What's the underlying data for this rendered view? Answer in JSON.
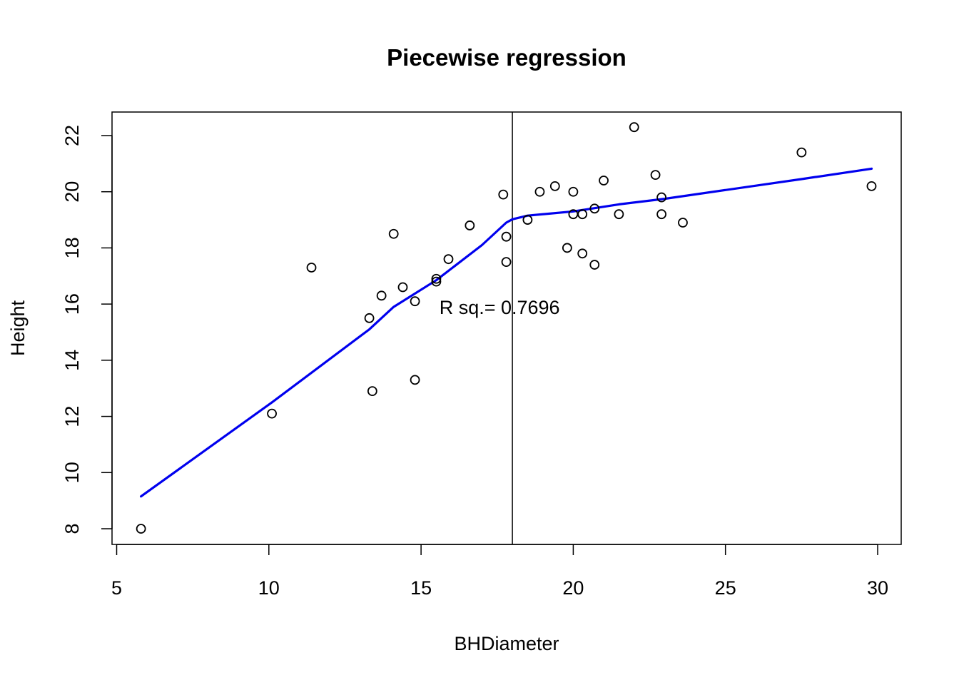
{
  "chart_data": {
    "type": "scatter",
    "title": "Piecewise regression",
    "xlabel": "BHDiameter",
    "ylabel": "Height",
    "xlim": [
      5,
      30
    ],
    "ylim": [
      8,
      22
    ],
    "x_ticks": [
      5,
      10,
      15,
      20,
      25,
      30
    ],
    "y_ticks": [
      8,
      10,
      12,
      14,
      16,
      18,
      20,
      22
    ],
    "annotation": "R sq.= 0.7696",
    "annotation_pos": {
      "x": 15.6,
      "y": 15.9
    },
    "breakpoint_x": 18,
    "point_color": "#000000",
    "line_color": "#0000ee",
    "points": [
      {
        "x": 5.8,
        "y": 8.0
      },
      {
        "x": 10.1,
        "y": 12.1
      },
      {
        "x": 11.4,
        "y": 17.3
      },
      {
        "x": 13.3,
        "y": 15.5
      },
      {
        "x": 13.4,
        "y": 12.9
      },
      {
        "x": 13.7,
        "y": 16.3
      },
      {
        "x": 14.1,
        "y": 18.5
      },
      {
        "x": 14.4,
        "y": 16.6
      },
      {
        "x": 14.8,
        "y": 16.1
      },
      {
        "x": 14.8,
        "y": 13.3
      },
      {
        "x": 15.5,
        "y": 16.8
      },
      {
        "x": 15.5,
        "y": 16.9
      },
      {
        "x": 15.9,
        "y": 17.6
      },
      {
        "x": 16.6,
        "y": 18.8
      },
      {
        "x": 17.7,
        "y": 19.9
      },
      {
        "x": 17.8,
        "y": 18.4
      },
      {
        "x": 17.8,
        "y": 17.5
      },
      {
        "x": 18.5,
        "y": 19.0
      },
      {
        "x": 18.9,
        "y": 20.0
      },
      {
        "x": 19.4,
        "y": 20.2
      },
      {
        "x": 19.8,
        "y": 18.0
      },
      {
        "x": 20.0,
        "y": 20.0
      },
      {
        "x": 20.0,
        "y": 19.2
      },
      {
        "x": 20.3,
        "y": 19.2
      },
      {
        "x": 20.3,
        "y": 17.8
      },
      {
        "x": 20.7,
        "y": 19.4
      },
      {
        "x": 20.7,
        "y": 17.4
      },
      {
        "x": 21.0,
        "y": 20.4
      },
      {
        "x": 21.5,
        "y": 19.2
      },
      {
        "x": 22.0,
        "y": 22.3
      },
      {
        "x": 22.7,
        "y": 20.6
      },
      {
        "x": 22.9,
        "y": 19.8
      },
      {
        "x": 22.9,
        "y": 19.2
      },
      {
        "x": 23.6,
        "y": 18.9
      },
      {
        "x": 27.5,
        "y": 21.4
      },
      {
        "x": 29.8,
        "y": 20.2
      }
    ],
    "fit_line": [
      {
        "x": 5.8,
        "y": 9.15
      },
      {
        "x": 10.1,
        "y": 12.5
      },
      {
        "x": 13.3,
        "y": 15.1
      },
      {
        "x": 14.1,
        "y": 15.9
      },
      {
        "x": 15.5,
        "y": 16.85
      },
      {
        "x": 17.0,
        "y": 18.1
      },
      {
        "x": 17.8,
        "y": 18.9
      },
      {
        "x": 18.0,
        "y": 19.02
      },
      {
        "x": 18.5,
        "y": 19.15
      },
      {
        "x": 20.0,
        "y": 19.3
      },
      {
        "x": 21.5,
        "y": 19.55
      },
      {
        "x": 23.0,
        "y": 19.75
      },
      {
        "x": 27.5,
        "y": 20.45
      },
      {
        "x": 29.8,
        "y": 20.82
      }
    ]
  }
}
